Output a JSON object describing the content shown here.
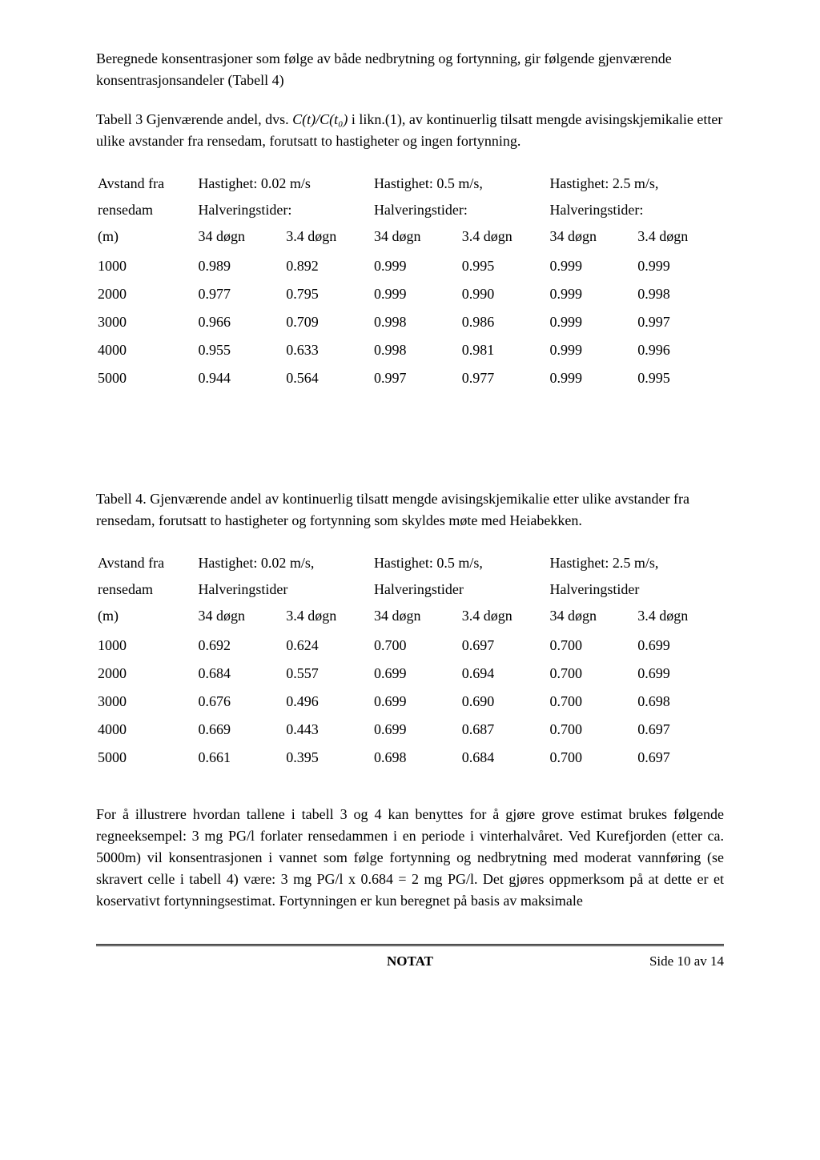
{
  "para1": "Beregnede konsentrasjoner som følge av både nedbrytning og fortynning, gir følgende gjenværende konsentrasjonsandeler (Tabell 4)",
  "table3": {
    "caption_prefix": "Tabell 3 Gjenværende andel, dvs. ",
    "caption_italic": "C(t)/C(t₀)",
    "caption_suffix": " i likn.(1), av kontinuerlig tilsatt mengde avisingskjemikalie etter ulike avstander fra rensedam, forutsatt to hastigheter og ingen fortynning.",
    "row_header_line1": "Avstand fra",
    "row_header_line2": "rensedam",
    "row_header_line3": "(m)",
    "speed1_line1": "Hastighet: 0.02 m/s",
    "speed1_line2": "Halveringstider:",
    "speed2_line1": "Hastighet: 0.5 m/s,",
    "speed2_line2": "Halveringstider:",
    "speed3_line1": "Hastighet: 2.5 m/s,",
    "speed3_line2": "Halveringstider:",
    "sub_a": "34 døgn",
    "sub_b": "3.4 døgn",
    "rows": [
      {
        "d": "1000",
        "v": [
          "0.989",
          "0.892",
          "0.999",
          "0.995",
          "0.999",
          "0.999"
        ]
      },
      {
        "d": "2000",
        "v": [
          "0.977",
          "0.795",
          "0.999",
          "0.990",
          "0.999",
          "0.998"
        ]
      },
      {
        "d": "3000",
        "v": [
          "0.966",
          "0.709",
          "0.998",
          "0.986",
          "0.999",
          "0.997"
        ]
      },
      {
        "d": "4000",
        "v": [
          "0.955",
          "0.633",
          "0.998",
          "0.981",
          "0.999",
          "0.996"
        ]
      },
      {
        "d": "5000",
        "v": [
          "0.944",
          "0.564",
          "0.997",
          "0.977",
          "0.999",
          "0.995"
        ]
      }
    ]
  },
  "table4": {
    "caption": "Tabell 4.  Gjenværende andel av kontinuerlig tilsatt mengde avisingskjemikalie etter ulike avstander fra rensedam, forutsatt to hastigheter og fortynning som skyldes møte med Heiabekken.",
    "row_header_line1": "Avstand fra",
    "row_header_line2": "rensedam",
    "row_header_line3": "(m)",
    "speed1_line1": "Hastighet:  0.02  m/s,",
    "speed1_line2": "Halveringstider",
    "speed2_line1": "Hastighet:   0.5   m/s,",
    "speed2_line2": "Halveringstider",
    "speed3_line1": "Hastighet:   2.5   m/s,",
    "speed3_line2": "Halveringstider",
    "sub_a": "34 døgn",
    "sub_b": "3.4 døgn",
    "rows": [
      {
        "d": "1000",
        "v": [
          "0.692",
          "0.624",
          "0.700",
          "0.697",
          "0.700",
          "0.699"
        ]
      },
      {
        "d": "2000",
        "v": [
          "0.684",
          "0.557",
          "0.699",
          "0.694",
          "0.700",
          "0.699"
        ]
      },
      {
        "d": "3000",
        "v": [
          "0.676",
          "0.496",
          "0.699",
          "0.690",
          "0.700",
          "0.698"
        ]
      },
      {
        "d": "4000",
        "v": [
          "0.669",
          "0.443",
          "0.699",
          "0.687",
          "0.700",
          "0.697"
        ]
      },
      {
        "d": "5000",
        "v": [
          "0.661",
          "0.395",
          "0.698",
          "0.684",
          "0.700",
          "0.697"
        ]
      }
    ]
  },
  "para2": "For å illustrere hvordan tallene i tabell 3 og 4 kan benyttes for å gjøre grove estimat brukes følgende regneeksempel: 3 mg PG/l forlater rensedammen i en periode i vinterhalvåret. Ved Kurefjorden (etter ca. 5000m) vil konsentrasjonen i vannet som følge fortynning og nedbrytning med moderat vannføring (se skravert celle i tabell 4) være: 3 mg PG/l x 0.684 = 2 mg PG/l. Det gjøres oppmerksom på at dette er et koservativt fortynningsestimat. Fortynningen er kun beregnet på basis av maksimale",
  "footer": {
    "center": "NOTAT",
    "right": "Side 10 av 14"
  }
}
